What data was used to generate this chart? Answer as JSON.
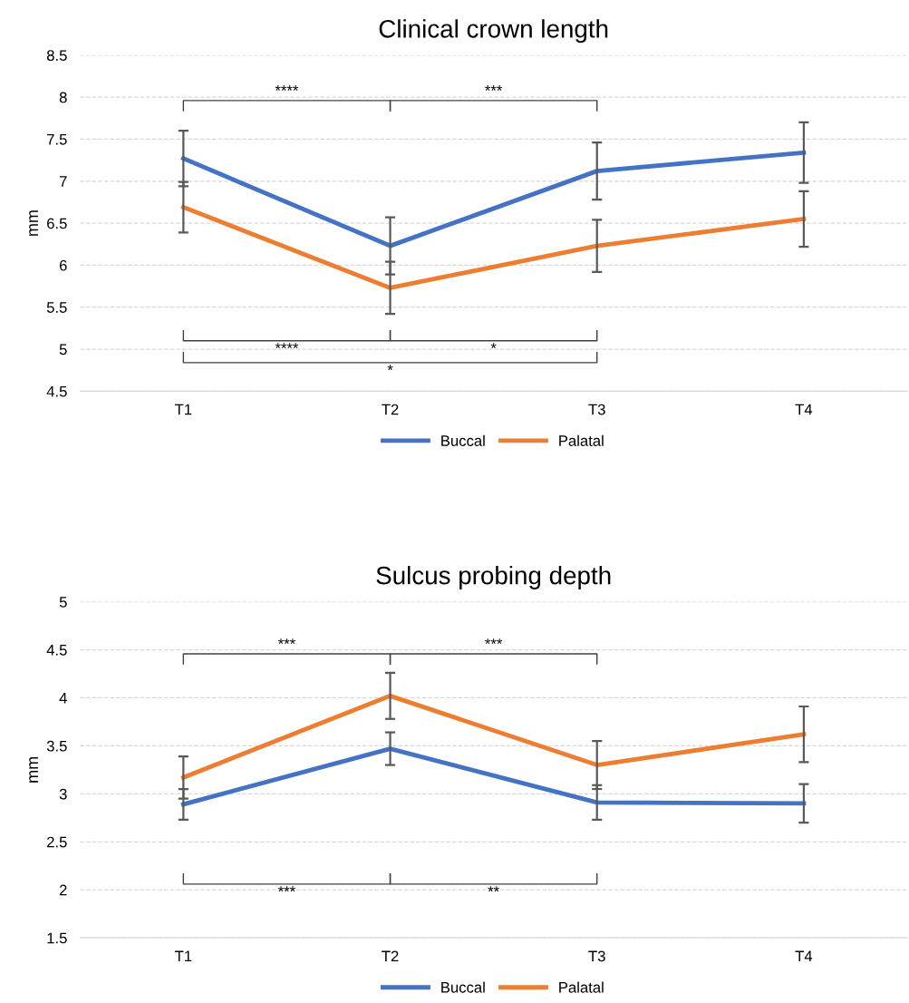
{
  "chart_data": [
    {
      "type": "line",
      "title": "Clinical crown length",
      "ylabel": "mm",
      "categories": [
        "T1",
        "T2",
        "T3",
        "T4"
      ],
      "series": [
        {
          "name": "Buccal",
          "color": "#4472c4",
          "values": [
            7.27,
            6.23,
            7.12,
            7.34
          ],
          "errors": [
            0.33,
            0.34,
            0.34,
            0.36
          ]
        },
        {
          "name": "Palatal",
          "color": "#ed7d31",
          "values": [
            6.69,
            5.73,
            6.23,
            6.55
          ],
          "errors": [
            0.3,
            0.31,
            0.31,
            0.33
          ]
        }
      ],
      "ylim": [
        4.5,
        8.5
      ],
      "yticks": [
        4.5,
        5,
        5.5,
        6,
        6.5,
        7,
        7.5,
        8,
        8.5
      ],
      "grid": "y",
      "legend": "bottom",
      "marker": "none",
      "line_style": "solid",
      "annotations": [
        "****",
        "***",
        "****",
        "*",
        "*"
      ]
    },
    {
      "type": "line",
      "title": "Sulcus probing depth",
      "ylabel": "mm",
      "categories": [
        "T1",
        "T2",
        "T3",
        "T4"
      ],
      "series": [
        {
          "name": "Buccal",
          "color": "#4472c4",
          "values": [
            2.89,
            3.47,
            2.91,
            2.9
          ],
          "errors": [
            0.16,
            0.17,
            0.18,
            0.2
          ]
        },
        {
          "name": "Palatal",
          "color": "#ed7d31",
          "values": [
            3.17,
            4.02,
            3.3,
            3.62
          ],
          "errors": [
            0.22,
            0.24,
            0.25,
            0.29
          ]
        }
      ],
      "ylim": [
        1.5,
        5
      ],
      "yticks": [
        1.5,
        2,
        2.5,
        3,
        3.5,
        4,
        4.5,
        5
      ],
      "grid": "y",
      "legend": "bottom",
      "marker": "none",
      "line_style": "solid",
      "annotations": [
        "***",
        "***",
        "***",
        "**"
      ]
    }
  ]
}
